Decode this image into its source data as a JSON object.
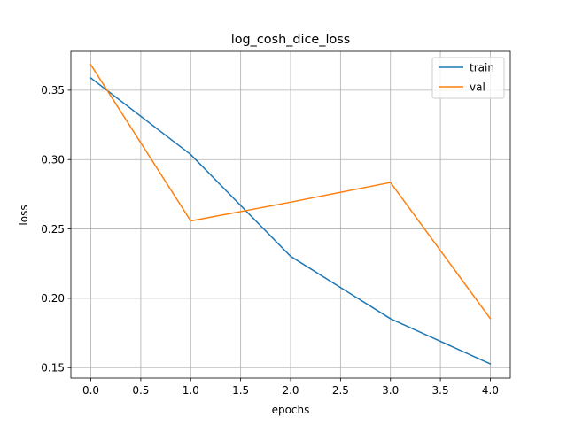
{
  "chart_data": {
    "type": "line",
    "title": "log_cosh_dice_loss",
    "xlabel": "epochs",
    "ylabel": "loss",
    "x": [
      0,
      1,
      2,
      3,
      4
    ],
    "xlim": [
      -0.2,
      4.2
    ],
    "ylim": [
      0.1425,
      0.378
    ],
    "xticks": [
      0.0,
      0.5,
      1.0,
      1.5,
      2.0,
      2.5,
      3.0,
      3.5,
      4.0
    ],
    "xtick_labels": [
      "0.0",
      "0.5",
      "1.0",
      "1.5",
      "2.0",
      "2.5",
      "3.0",
      "3.5",
      "4.0"
    ],
    "yticks": [
      0.15,
      0.2,
      0.25,
      0.3,
      0.35
    ],
    "ytick_labels": [
      "0.15",
      "0.20",
      "0.25",
      "0.30",
      "0.35"
    ],
    "grid": true,
    "legend_position": "top-right",
    "series": [
      {
        "name": "train",
        "color": "#1f77b4",
        "values": [
          0.3588,
          0.3036,
          0.2303,
          0.1853,
          0.1527
        ]
      },
      {
        "name": "val",
        "color": "#ff7f0e",
        "values": [
          0.3683,
          0.2558,
          0.2693,
          0.2835,
          0.1854
        ]
      }
    ]
  }
}
